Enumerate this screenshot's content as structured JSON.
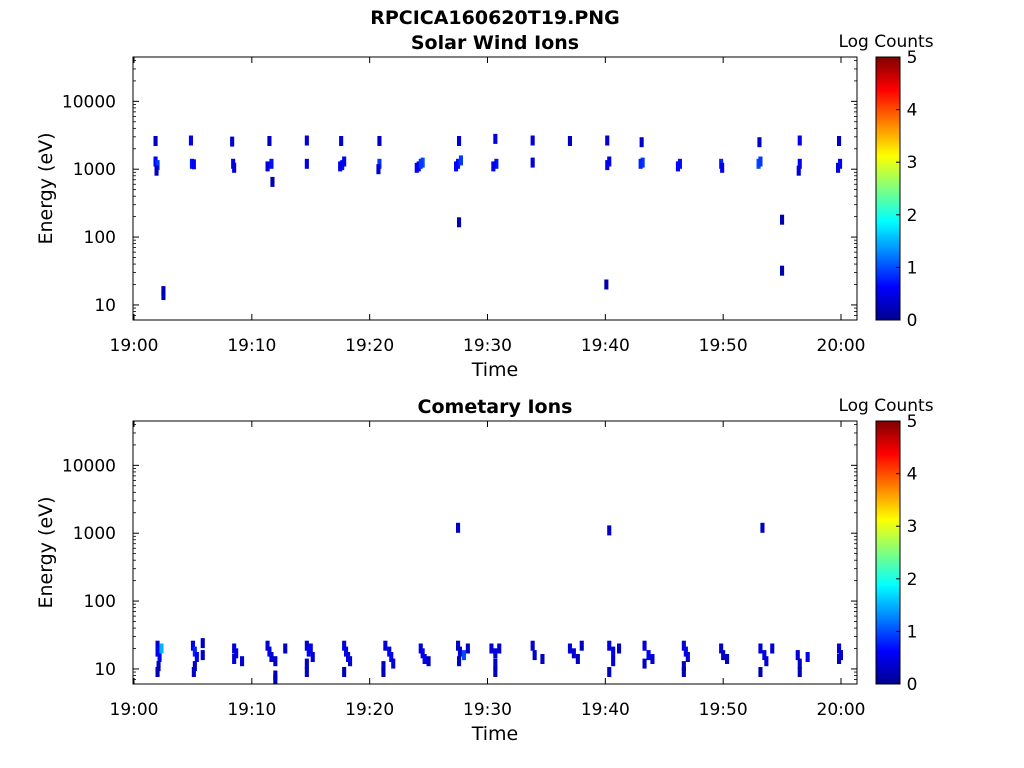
{
  "figure_title": "RPCICA160620T19.PNG",
  "chart_data": [
    {
      "type": "heatmap",
      "title": "Solar Wind Ions",
      "xlabel": "Time",
      "ylabel": "Energy (eV)",
      "x_scale": "time",
      "xlim": [
        "19:00",
        "20:00"
      ],
      "x_ticks": [
        "19:00",
        "19:10",
        "19:20",
        "19:30",
        "19:40",
        "19:50",
        "20:00"
      ],
      "y_scale": "log",
      "ylim": [
        6,
        45000
      ],
      "y_ticks": [
        10,
        100,
        1000,
        10000
      ],
      "y_tick_labels": [
        "10",
        "100",
        "1000",
        "10000"
      ],
      "colorbar": {
        "label": "Log Counts",
        "range": [
          0,
          5
        ],
        "ticks": [
          "0",
          "1",
          "2",
          "3",
          "4",
          "5"
        ],
        "colormap": "jet"
      },
      "grid": false,
      "points_note": "each point: [time (HH:MM:SS), energy eV, log counts]",
      "points": [
        [
          "19:01:50",
          2600,
          0.3
        ],
        [
          "19:01:50",
          1300,
          0.6
        ],
        [
          "19:02:00",
          1150,
          0.9
        ],
        [
          "19:01:55",
          950,
          0.3
        ],
        [
          "19:02:30",
          16,
          0.2
        ],
        [
          "19:02:30",
          14,
          0.2
        ],
        [
          "19:04:50",
          2650,
          0.5
        ],
        [
          "19:04:55",
          1200,
          0.7
        ],
        [
          "19:05:05",
          1180,
          0.6
        ],
        [
          "19:08:20",
          2550,
          0.4
        ],
        [
          "19:08:25",
          1200,
          0.6
        ],
        [
          "19:08:30",
          1050,
          0.4
        ],
        [
          "19:11:30",
          2600,
          0.3
        ],
        [
          "19:11:20",
          1100,
          0.4
        ],
        [
          "19:11:40",
          1200,
          0.7
        ],
        [
          "19:11:45",
          650,
          0.2
        ],
        [
          "19:14:40",
          2650,
          0.4
        ],
        [
          "19:14:40",
          1200,
          0.5
        ],
        [
          "19:17:35",
          2600,
          0.4
        ],
        [
          "19:17:40",
          1150,
          0.7
        ],
        [
          "19:17:50",
          1300,
          0.6
        ],
        [
          "19:17:30",
          1100,
          0.5
        ],
        [
          "19:20:50",
          2600,
          0.3
        ],
        [
          "19:20:50",
          1200,
          0.9
        ],
        [
          "19:20:45",
          1000,
          0.4
        ],
        [
          "19:24:10",
          1100,
          0.5
        ],
        [
          "19:24:30",
          1250,
          1.0
        ],
        [
          "19:24:20",
          1200,
          0.9
        ],
        [
          "19:24:00",
          1050,
          0.6
        ],
        [
          "19:27:35",
          2600,
          0.4
        ],
        [
          "19:27:30",
          1200,
          0.7
        ],
        [
          "19:27:45",
          1350,
          0.9
        ],
        [
          "19:27:20",
          1100,
          0.6
        ],
        [
          "19:27:35",
          165,
          0.2
        ],
        [
          "19:30:40",
          2800,
          0.5
        ],
        [
          "19:30:45",
          1200,
          0.7
        ],
        [
          "19:30:30",
          1100,
          0.5
        ],
        [
          "19:33:50",
          2650,
          0.4
        ],
        [
          "19:33:50",
          1250,
          0.4
        ],
        [
          "19:37:00",
          2600,
          0.3
        ],
        [
          "19:40:10",
          2650,
          0.4
        ],
        [
          "19:40:10",
          1150,
          0.6
        ],
        [
          "19:40:20",
          1300,
          0.5
        ],
        [
          "19:40:05",
          20,
          0.2
        ],
        [
          "19:43:05",
          2500,
          0.3
        ],
        [
          "19:43:10",
          1250,
          0.9
        ],
        [
          "19:43:00",
          1200,
          0.8
        ],
        [
          "19:46:20",
          1200,
          0.7
        ],
        [
          "19:46:10",
          1100,
          0.6
        ],
        [
          "19:49:50",
          1200,
          0.8
        ],
        [
          "19:49:55",
          1050,
          0.5
        ],
        [
          "19:53:00",
          1200,
          1.0
        ],
        [
          "19:53:10",
          1300,
          0.9
        ],
        [
          "19:53:05",
          2500,
          0.3
        ],
        [
          "19:55:00",
          180,
          0.2
        ],
        [
          "19:55:00",
          32,
          0.2
        ],
        [
          "19:56:30",
          2650,
          0.5
        ],
        [
          "19:56:30",
          1200,
          0.6
        ],
        [
          "19:56:25",
          950,
          0.4
        ],
        [
          "19:59:50",
          2600,
          0.3
        ],
        [
          "19:59:55",
          1200,
          0.6
        ],
        [
          "19:59:45",
          1050,
          0.4
        ]
      ]
    },
    {
      "type": "heatmap",
      "title": "Cometary Ions",
      "xlabel": "Time",
      "ylabel": "Energy (eV)",
      "x_scale": "time",
      "xlim": [
        "19:00",
        "20:00"
      ],
      "x_ticks": [
        "19:00",
        "19:10",
        "19:20",
        "19:30",
        "19:40",
        "19:50",
        "20:00"
      ],
      "y_scale": "log",
      "ylim": [
        6,
        45000
      ],
      "y_ticks": [
        10,
        100,
        1000,
        10000
      ],
      "y_tick_labels": [
        "10",
        "100",
        "1000",
        "10000"
      ],
      "colorbar": {
        "label": "Log Counts",
        "range": [
          0,
          5
        ],
        "ticks": [
          "0",
          "1",
          "2",
          "3",
          "4",
          "5"
        ],
        "colormap": "jet"
      },
      "grid": false,
      "points_note": "each point: [time (HH:MM:SS), energy eV, log counts]",
      "points": [
        [
          "19:27:30",
          1200,
          0.3
        ],
        [
          "19:40:20",
          1100,
          0.3
        ],
        [
          "19:53:20",
          1200,
          0.3
        ],
        [
          "19:02:00",
          22,
          0.4
        ],
        [
          "19:02:00",
          18,
          0.6
        ],
        [
          "19:02:10",
          15,
          0.5
        ],
        [
          "19:02:20",
          20,
          1.5
        ],
        [
          "19:02:05",
          11,
          0.3
        ],
        [
          "19:02:00",
          9,
          0.2
        ],
        [
          "19:05:00",
          22,
          0.5
        ],
        [
          "19:05:10",
          18,
          0.8
        ],
        [
          "19:05:20",
          15,
          0.6
        ],
        [
          "19:05:10",
          11,
          0.3
        ],
        [
          "19:05:05",
          9,
          0.3
        ],
        [
          "19:05:50",
          24,
          0.3
        ],
        [
          "19:05:50",
          16,
          0.3
        ],
        [
          "19:08:30",
          20,
          0.4
        ],
        [
          "19:08:40",
          17,
          0.5
        ],
        [
          "19:08:30",
          14,
          0.4
        ],
        [
          "19:09:10",
          13,
          0.4
        ],
        [
          "19:11:20",
          22,
          0.4
        ],
        [
          "19:11:30",
          18,
          0.5
        ],
        [
          "19:11:40",
          15,
          0.4
        ],
        [
          "19:12:00",
          13,
          0.3
        ],
        [
          "19:12:00",
          8,
          0.2
        ],
        [
          "19:12:00",
          7,
          0.2
        ],
        [
          "19:12:50",
          20,
          0.3
        ],
        [
          "19:14:40",
          22,
          0.4
        ],
        [
          "19:14:50",
          18,
          0.6
        ],
        [
          "19:15:00",
          20,
          0.5
        ],
        [
          "19:15:10",
          15,
          0.4
        ],
        [
          "19:14:40",
          12,
          0.3
        ],
        [
          "19:14:40",
          9,
          0.3
        ],
        [
          "19:17:50",
          22,
          0.4
        ],
        [
          "19:18:00",
          18,
          0.5
        ],
        [
          "19:18:10",
          15,
          0.5
        ],
        [
          "19:18:20",
          13,
          0.4
        ],
        [
          "19:17:50",
          9,
          0.2
        ],
        [
          "19:21:20",
          22,
          0.4
        ],
        [
          "19:21:40",
          18,
          0.5
        ],
        [
          "19:21:50",
          15,
          0.6
        ],
        [
          "19:22:00",
          12,
          0.4
        ],
        [
          "19:21:10",
          11,
          0.3
        ],
        [
          "19:21:10",
          9,
          0.2
        ],
        [
          "19:24:20",
          20,
          0.4
        ],
        [
          "19:24:30",
          17,
          0.5
        ],
        [
          "19:24:40",
          14,
          0.5
        ],
        [
          "19:25:00",
          13,
          0.3
        ],
        [
          "19:27:30",
          22,
          0.3
        ],
        [
          "19:27:40",
          18,
          0.4
        ],
        [
          "19:28:00",
          16,
          1.0
        ],
        [
          "19:27:35",
          13,
          0.3
        ],
        [
          "19:28:20",
          20,
          0.3
        ],
        [
          "19:30:20",
          20,
          0.4
        ],
        [
          "19:30:40",
          17,
          0.4
        ],
        [
          "19:31:00",
          20,
          0.4
        ],
        [
          "19:30:40",
          12,
          0.3
        ],
        [
          "19:30:40",
          9,
          0.2
        ],
        [
          "19:33:50",
          22,
          0.4
        ],
        [
          "19:34:00",
          16,
          0.3
        ],
        [
          "19:34:40",
          14,
          0.3
        ],
        [
          "19:37:00",
          20,
          0.4
        ],
        [
          "19:37:20",
          17,
          0.4
        ],
        [
          "19:37:40",
          14,
          0.3
        ],
        [
          "19:38:00",
          22,
          0.3
        ],
        [
          "19:40:20",
          22,
          0.4
        ],
        [
          "19:40:40",
          18,
          0.5
        ],
        [
          "19:40:40",
          13,
          0.4
        ],
        [
          "19:40:20",
          9,
          0.3
        ],
        [
          "19:41:10",
          20,
          0.3
        ],
        [
          "19:43:20",
          22,
          0.4
        ],
        [
          "19:43:40",
          16,
          0.5
        ],
        [
          "19:44:00",
          14,
          0.4
        ],
        [
          "19:43:20",
          12,
          0.3
        ],
        [
          "19:46:40",
          22,
          0.4
        ],
        [
          "19:46:50",
          18,
          0.5
        ],
        [
          "19:47:00",
          15,
          0.4
        ],
        [
          "19:46:40",
          11,
          0.3
        ],
        [
          "19:46:40",
          9,
          0.2
        ],
        [
          "19:49:50",
          20,
          0.3
        ],
        [
          "19:50:00",
          16,
          0.3
        ],
        [
          "19:50:20",
          14,
          0.3
        ],
        [
          "19:53:10",
          20,
          0.4
        ],
        [
          "19:53:30",
          16,
          0.5
        ],
        [
          "19:53:40",
          13,
          0.4
        ],
        [
          "19:53:10",
          9,
          0.2
        ],
        [
          "19:54:10",
          20,
          0.3
        ],
        [
          "19:56:20",
          16,
          0.4
        ],
        [
          "19:56:30",
          12,
          0.3
        ],
        [
          "19:56:30",
          9,
          0.2
        ],
        [
          "19:57:10",
          15,
          0.5
        ],
        [
          "19:59:50",
          20,
          0.4
        ],
        [
          "20:00:00",
          16,
          0.4
        ],
        [
          "19:59:50",
          14,
          0.3
        ]
      ]
    }
  ]
}
